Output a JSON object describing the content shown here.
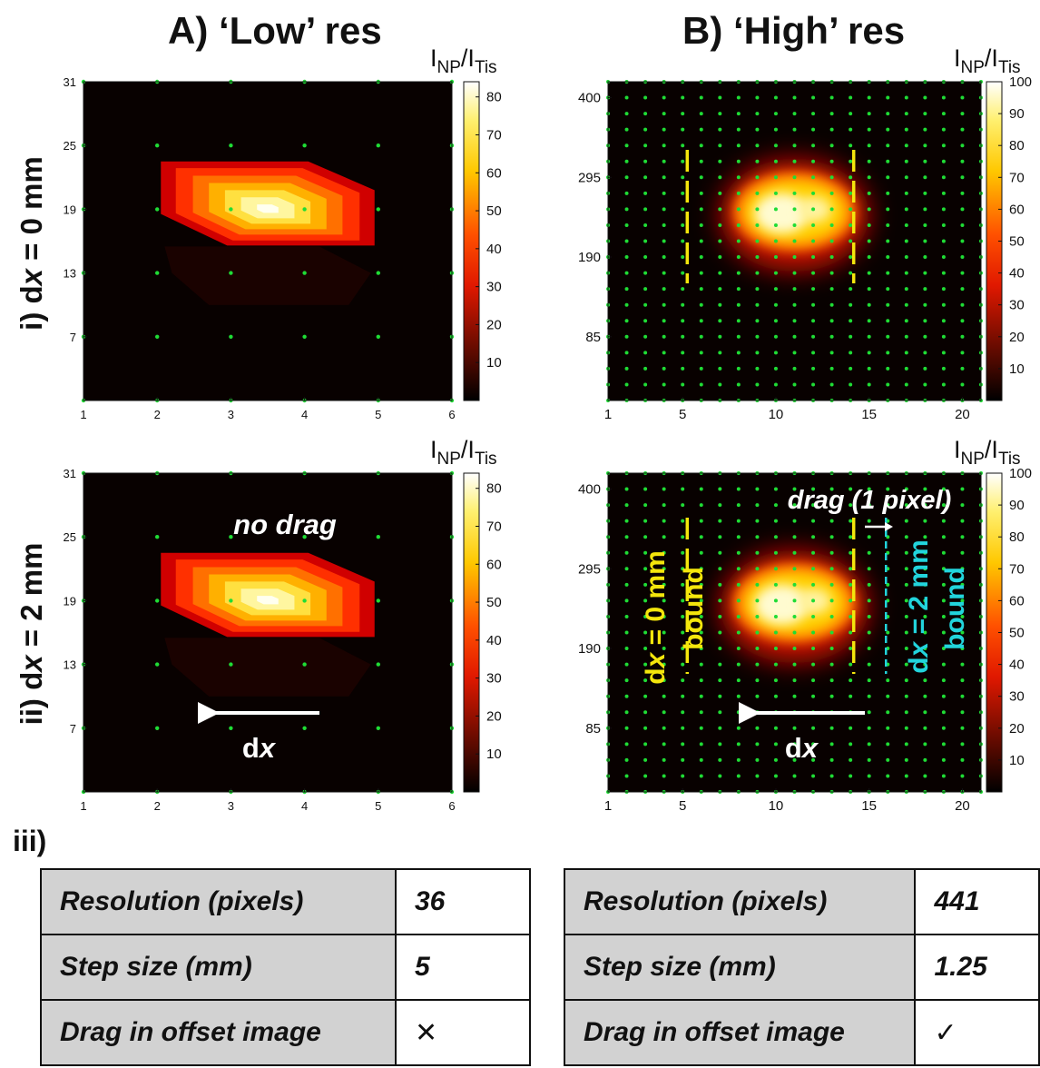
{
  "columns": [
    {
      "title": "A) ‘Low’ res"
    },
    {
      "title": "B) ‘High’ res"
    }
  ],
  "rows": [
    {
      "prefix": "i) d",
      "var": "x",
      "suffix": " = 0 mm"
    },
    {
      "prefix": "ii) d",
      "var": "x",
      "suffix": " = 2 mm"
    }
  ],
  "colormap": "hot",
  "chart_data": [
    {
      "type": "heatmap",
      "panel": "A-i",
      "x_ticks": [
        1,
        2,
        3,
        4,
        5,
        6
      ],
      "y_ticks": [
        7,
        13,
        19,
        25,
        31
      ],
      "colorbar": {
        "label_base": "I",
        "label_sub1": "NP",
        "label_slash": "/I",
        "label_sub2": "Tis",
        "min": 0,
        "max": 84,
        "ticks": [
          10,
          20,
          30,
          40,
          50,
          60,
          70,
          80
        ]
      },
      "grid_points": {
        "nx": 6,
        "ny": 6
      },
      "hotspot_peak": {
        "x": 3.5,
        "y": 19,
        "value": 84
      }
    },
    {
      "type": "heatmap",
      "panel": "B-i",
      "x_ticks": [
        1,
        5,
        10,
        15,
        20
      ],
      "y_ticks": [
        85,
        190,
        295,
        400
      ],
      "colorbar": {
        "label_base": "I",
        "label_sub1": "NP",
        "label_slash": "/I",
        "label_sub2": "Tis",
        "min": 0,
        "max": 100,
        "ticks": [
          10,
          20,
          30,
          40,
          50,
          60,
          70,
          80,
          90,
          100
        ]
      },
      "grid_points": {
        "nx": 21,
        "ny": 21
      },
      "bounds": [
        {
          "x": 7,
          "color": "#f4e60c"
        },
        {
          "x": 15,
          "color": "#f4e60c"
        }
      ]
    },
    {
      "type": "heatmap",
      "panel": "A-ii",
      "x_ticks": [
        1,
        2,
        3,
        4,
        5,
        6
      ],
      "y_ticks": [
        7,
        13,
        19,
        25,
        31
      ],
      "colorbar": {
        "label_base": "I",
        "label_sub1": "NP",
        "label_slash": "/I",
        "label_sub2": "Tis",
        "min": 0,
        "max": 84,
        "ticks": [
          10,
          20,
          30,
          40,
          50,
          60,
          70,
          80
        ]
      },
      "grid_points": {
        "nx": 6,
        "ny": 6
      },
      "annotations": {
        "no_drag": "no drag",
        "arrow_prefix": "d",
        "arrow_var": "x"
      }
    },
    {
      "type": "heatmap",
      "panel": "B-ii",
      "x_ticks": [
        1,
        5,
        10,
        15,
        20
      ],
      "y_ticks": [
        85,
        190,
        295,
        400
      ],
      "colorbar": {
        "label_base": "I",
        "label_sub1": "NP",
        "label_slash": "/I",
        "label_sub2": "Tis",
        "min": 0,
        "max": 100,
        "ticks": [
          10,
          20,
          30,
          40,
          50,
          60,
          70,
          80,
          90,
          100
        ]
      },
      "grid_points": {
        "nx": 21,
        "ny": 21
      },
      "bounds": [
        {
          "x": 7,
          "color": "#f4e60c"
        },
        {
          "x": 15,
          "color": "#f4e60c"
        },
        {
          "x": 16,
          "color": "#22d4dc"
        }
      ],
      "annotations": {
        "drag": "drag (1 pixel)",
        "bound0_prefix": "d",
        "bound0_var": "x",
        "bound0_suffix": " = 0 mm",
        "bound0_word": "bound",
        "bound2_prefix": "d",
        "bound2_var": "x",
        "bound2_suffix": " = 2 mm",
        "bound2_word": "bound",
        "arrow_prefix": "d",
        "arrow_var": "x"
      }
    }
  ],
  "section_label": "iii)",
  "tables": [
    {
      "rows": [
        {
          "key": "Resolution (pixels)",
          "value": "36"
        },
        {
          "key": "Step size (mm)",
          "value": "5"
        },
        {
          "key": "Drag in offset image",
          "value": "✕"
        }
      ]
    },
    {
      "rows": [
        {
          "key": "Resolution (pixels)",
          "value": "441"
        },
        {
          "key": "Step size (mm)",
          "value": "1.25"
        },
        {
          "key": "Drag in offset image",
          "value": "✓"
        }
      ]
    }
  ]
}
